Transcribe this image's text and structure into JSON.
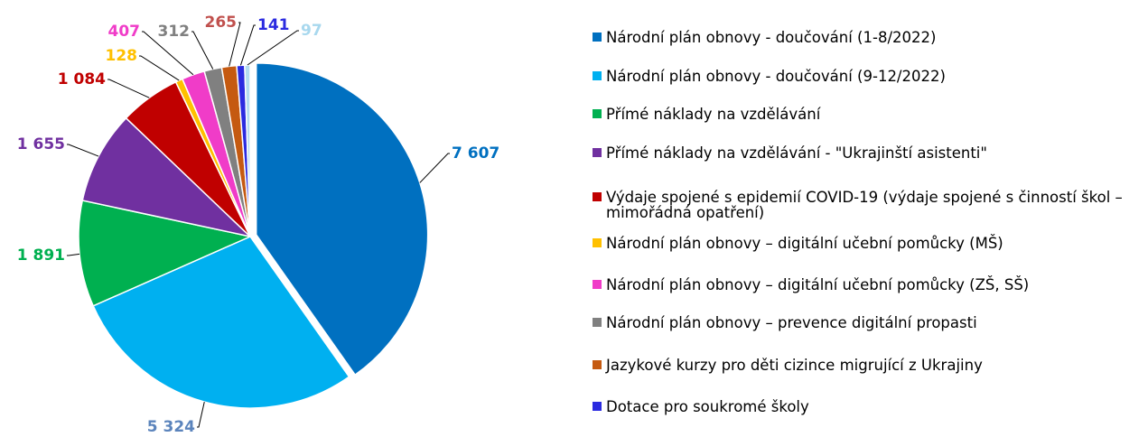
{
  "chart_data": {
    "type": "pie",
    "categories": [
      "Národní plán obnovy - doučování (1-8/2022)",
      "Národní plán obnovy - doučování (9-12/2022)",
      "Přímé náklady na vzdělávání",
      "Přímé náklady na vzdělávání - \"Ukrajinští asistenti\"",
      "Výdaje spojené s epidemií COVID-19 (výdaje spojené s činností škol – mimořádná opatření)",
      "Národní plán obnovy – digitální učební pomůcky (MŠ)",
      "Národní plán obnovy – digitální učební pomůcky (ZŠ, SŠ)",
      "Národní plán obnovy – prevence digitální propasti",
      "Jazykové kurzy pro děti cizince migrující z Ukrajiny",
      "Dotace pro soukromé školy",
      null
    ],
    "values": [
      7607,
      5324,
      1891,
      1655,
      1084,
      128,
      407,
      312,
      265,
      141,
      97
    ],
    "value_labels": [
      "7 607",
      "5 324",
      "1 891",
      "1 655",
      "1 084",
      "128",
      "407",
      "312",
      "265",
      "141",
      "97"
    ],
    "colors": [
      "#0070c0",
      "#00b0f0",
      "#00b050",
      "#7030a0",
      "#c00000",
      "#ffc000",
      "#f03cc8",
      "#808080",
      "#c55a11",
      "#2b2be0",
      "#b4dcf0"
    ],
    "label_colors": [
      "#0070c0",
      "#5b84bc",
      "#00b050",
      "#7030a0",
      "#c00000",
      "#ffc000",
      "#f03cc8",
      "#808080",
      "#c0504d",
      "#2b2be0",
      "#a8d8ee"
    ]
  }
}
